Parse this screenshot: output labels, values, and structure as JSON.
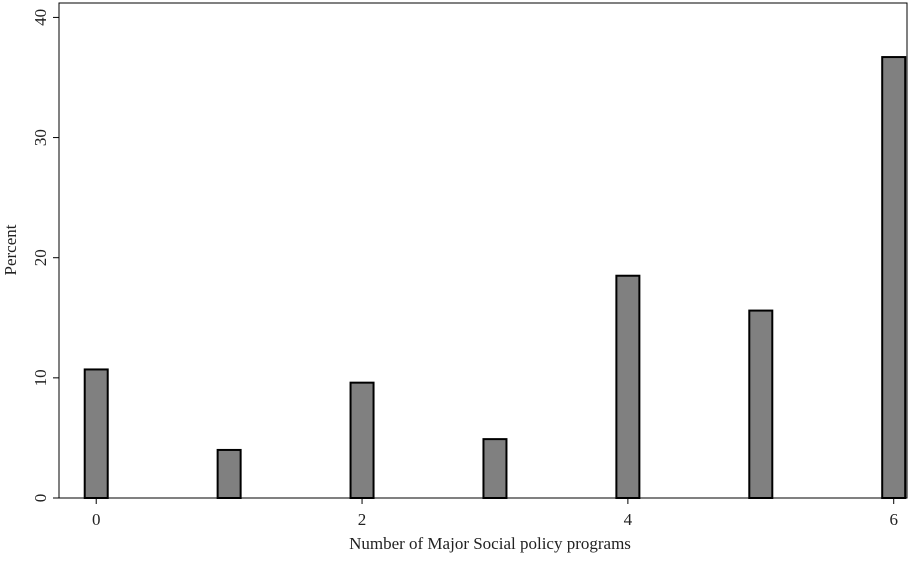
{
  "chart_data": {
    "type": "bar",
    "x": [
      0,
      1,
      2,
      3,
      4,
      5,
      6
    ],
    "values": [
      10.7,
      4.0,
      9.6,
      4.9,
      18.5,
      15.6,
      36.7
    ],
    "color": "#808080",
    "xlabel": "Number of Major Social policy programs",
    "ylabel": "Percent",
    "xlim": [
      -0.28,
      6.1
    ],
    "xticks": [
      0,
      2,
      4,
      6
    ],
    "ylim": [
      0,
      41.2
    ],
    "yticks": [
      0,
      10,
      20,
      30,
      40
    ]
  }
}
